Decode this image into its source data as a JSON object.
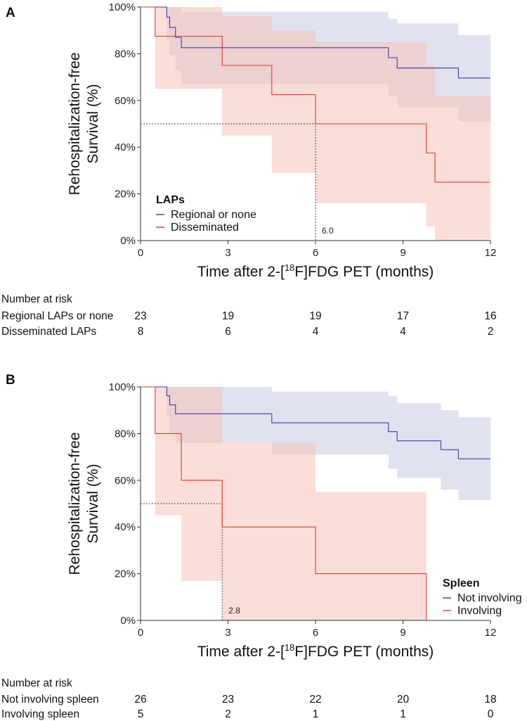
{
  "chart_data": [
    {
      "type": "line",
      "subtype": "kaplan-meier",
      "panel_label": "A",
      "title": "",
      "xlabel_prefix": "Time after 2-[",
      "xlabel_sup": "18",
      "xlabel_suffix": "F]FDG PET (months)",
      "ylabel_line1": "Rehospitalization-free",
      "ylabel_line2": "Survival (%)",
      "xlim": [
        0,
        12
      ],
      "ylim": [
        0,
        100
      ],
      "xticks": [
        0,
        3,
        6,
        9,
        12
      ],
      "xtick_labels": [
        "0",
        "3",
        "6",
        "9",
        "12"
      ],
      "yticks": [
        0,
        20,
        40,
        60,
        80,
        100
      ],
      "ytick_labels": [
        "0%",
        "20%",
        "40%",
        "60%",
        "80%",
        "100%"
      ],
      "legend_position": "lower-left",
      "legend_title": "LAPs",
      "series": [
        {
          "name": "Regional or none",
          "color": "#3b3bb3",
          "band_color": "#c9cbe3",
          "x": [
            0,
            0.9,
            1.0,
            1.2,
            1.4,
            8.5,
            8.8,
            10.9,
            12
          ],
          "y": [
            100,
            95.7,
            91.3,
            87.0,
            82.6,
            78.3,
            73.9,
            69.6,
            69.6
          ],
          "lower": [
            100,
            86.0,
            79.5,
            73.0,
            67.0,
            62.0,
            57.0,
            51.0,
            51.0
          ],
          "upper": [
            100,
            100,
            100,
            100,
            98.0,
            95.0,
            93.0,
            88.0,
            88.0
          ]
        },
        {
          "name": "Disseminated",
          "color": "#e03a2a",
          "band_color": "#f6c3b6",
          "x": [
            0,
            0.5,
            2.8,
            4.5,
            6.0,
            9.8,
            10.1,
            12
          ],
          "y": [
            100,
            87.5,
            75.0,
            62.5,
            50.0,
            37.5,
            25.0,
            25.0
          ],
          "lower": [
            100,
            65.0,
            45.0,
            29.0,
            16.0,
            6.0,
            0,
            0
          ],
          "upper": [
            100,
            100,
            96.0,
            90.0,
            85.0,
            75.0,
            62.0,
            62.0
          ]
        }
      ],
      "median": {
        "x": 6.0,
        "y": 50,
        "label": "6.0"
      },
      "risk_table": {
        "title": "Number at risk",
        "times": [
          0,
          3,
          6,
          9,
          12
        ],
        "rows": [
          {
            "label": "Regional LAPs or none",
            "values": [
              "23",
              "19",
              "19",
              "17",
              "16"
            ]
          },
          {
            "label": "Disseminated LAPs",
            "values": [
              "8",
              "6",
              "4",
              "4",
              "2"
            ]
          }
        ]
      }
    },
    {
      "type": "line",
      "subtype": "kaplan-meier",
      "panel_label": "B",
      "title": "",
      "xlabel_prefix": "Time after 2-[",
      "xlabel_sup": "18",
      "xlabel_suffix": "F]FDG PET (months)",
      "ylabel_line1": "Rehospitalization-free",
      "ylabel_line2": "Survival (%)",
      "xlim": [
        0,
        12
      ],
      "ylim": [
        0,
        100
      ],
      "xticks": [
        0,
        3,
        6,
        9,
        12
      ],
      "xtick_labels": [
        "0",
        "3",
        "6",
        "9",
        "12"
      ],
      "yticks": [
        0,
        20,
        40,
        60,
        80,
        100
      ],
      "ytick_labels": [
        "0%",
        "20%",
        "40%",
        "60%",
        "80%",
        "100%"
      ],
      "legend_position": "lower-right",
      "legend_title": "Spleen",
      "series": [
        {
          "name": "Not involving",
          "color": "#3b3bb3",
          "band_color": "#c9cbe3",
          "x": [
            0,
            0.9,
            1.0,
            1.2,
            4.5,
            8.5,
            8.8,
            10.3,
            10.9,
            12
          ],
          "y": [
            100,
            96.2,
            92.3,
            88.5,
            84.6,
            80.8,
            76.9,
            73.1,
            69.2,
            69.2
          ],
          "lower": [
            100,
            87.0,
            80.0,
            76.0,
            71.0,
            65.0,
            61.0,
            56.0,
            51.5,
            51.5
          ],
          "upper": [
            100,
            100,
            100,
            100,
            98.0,
            96.0,
            93.0,
            90.0,
            87.0,
            87.0
          ]
        },
        {
          "name": "Involving",
          "color": "#e03a2a",
          "band_color": "#f6c3b6",
          "x": [
            0,
            0.5,
            1.4,
            2.8,
            6.0,
            9.8
          ],
          "y": [
            100,
            80.0,
            60.0,
            40.0,
            20.0,
            0
          ],
          "lower": [
            100,
            45.0,
            17.0,
            0,
            0,
            0
          ],
          "upper": [
            100,
            100,
            100,
            76.0,
            55.0,
            0
          ]
        }
      ],
      "median": {
        "x": 2.8,
        "y": 50,
        "label": "2.8"
      },
      "risk_table": {
        "title": "Number at risk",
        "times": [
          0,
          3,
          6,
          9,
          12
        ],
        "rows": [
          {
            "label": "Not involving spleen",
            "values": [
              "26",
              "23",
              "22",
              "20",
              "18"
            ]
          },
          {
            "label": "Involving spleen",
            "values": [
              "5",
              "2",
              "1",
              "1",
              "0"
            ]
          }
        ]
      }
    }
  ]
}
